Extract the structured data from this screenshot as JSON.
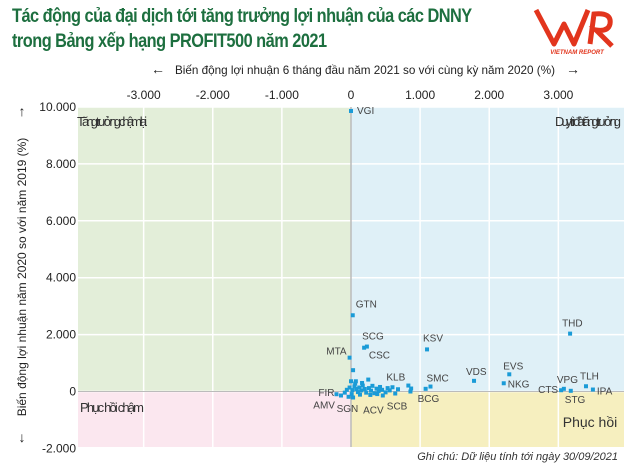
{
  "title_line1": "Tác động của đại dịch tới tăng trưởng lợi nhuận của các DNNY",
  "title_line2": "trong Bảng xếp hạng PROFIT500 năm 2021",
  "logo": {
    "text": "VNR",
    "subtitle": "VIETNAM REPORT",
    "color": "#e2351d"
  },
  "footnote": "Ghi chú: Dữ liệu tính tới ngày 30/09/2021",
  "colors": {
    "point": "#1a9bd7",
    "q_top_left": "#e3eed9",
    "q_top_right": "#dff0f7",
    "q_bottom_left": "#fbe7ef",
    "q_bottom_right": "#f6efbf",
    "title": "#1d6f3f"
  },
  "chart_data": {
    "type": "scatter",
    "xlabel": "Biến động lợi nhuận 6 tháng đầu năm 2021 so với cùng kỳ năm 2020 (%)",
    "ylabel": "Biến động lợi nhuận năm 2020 so với năm 2019 (%)",
    "xlim": [
      -3950,
      3950
    ],
    "ylim": [
      -1950,
      10000
    ],
    "x_ticks": [
      -3000,
      -2000,
      -1000,
      0,
      1000,
      2000,
      3000
    ],
    "x_tick_labels": [
      "-3.000",
      "-2.000",
      "-1.000",
      "0",
      "1.000",
      "2.000",
      "3.000"
    ],
    "y_ticks": [
      10000,
      8000,
      6000,
      4000,
      2000,
      0,
      -2000
    ],
    "y_tick_labels": [
      "10.000",
      "8.000",
      "6.000",
      "4.000",
      "2.000",
      "0",
      "-2.000"
    ],
    "grid": true,
    "quadrants": {
      "top_left": "Tăng trưởng chậm lại",
      "top_right": "Duy trì đà tăng trưởng",
      "bottom_left": "Phục hồi chậm",
      "bottom_right": "Phục hồi"
    },
    "points": [
      {
        "label": "VGI",
        "x": 0,
        "y": 9860
      },
      {
        "label": "GTN",
        "x": 25,
        "y": 2680
      },
      {
        "label": "SCG",
        "x": 190,
        "y": 1540
      },
      {
        "label": "CSC",
        "x": 230,
        "y": 1580
      },
      {
        "label": "MTA",
        "x": -20,
        "y": 1190
      },
      {
        "label": "KSV",
        "x": 1100,
        "y": 1480
      },
      {
        "label": "SMC",
        "x": 1150,
        "y": 175
      },
      {
        "label": "BCG",
        "x": 1080,
        "y": 95
      },
      {
        "label": "KLB",
        "x": 830,
        "y": 210
      },
      {
        "label": "FIR",
        "x": -210,
        "y": -95
      },
      {
        "label": "AMV",
        "x": -145,
        "y": -140
      },
      {
        "label": "SGN",
        "x": -35,
        "y": -185
      },
      {
        "label": "ACV",
        "x": 30,
        "y": -210
      },
      {
        "label": "SCB",
        "x": 460,
        "y": -140
      },
      {
        "label": "THD",
        "x": 3170,
        "y": 2035
      },
      {
        "label": "VDS",
        "x": 1780,
        "y": 375
      },
      {
        "label": "EVS",
        "x": 2290,
        "y": 605
      },
      {
        "label": "NKG",
        "x": 2210,
        "y": 290
      },
      {
        "label": "VPG",
        "x": 3080,
        "y": 95
      },
      {
        "label": "CTS",
        "x": 3040,
        "y": 45
      },
      {
        "label": "STG",
        "x": 3180,
        "y": 25
      },
      {
        "label": "TLH",
        "x": 3400,
        "y": 185
      },
      {
        "label": "IPA",
        "x": 3500,
        "y": 70
      },
      {
        "label": "",
        "x": 870,
        "y": 105
      },
      {
        "label": "",
        "x": 860,
        "y": 0
      },
      {
        "label": "",
        "x": 30,
        "y": 750
      },
      {
        "label": "",
        "x": 0,
        "y": 360
      },
      {
        "label": "",
        "x": 70,
        "y": 360
      },
      {
        "label": "",
        "x": 250,
        "y": 420
      },
      {
        "label": "",
        "x": -60,
        "y": 60
      },
      {
        "label": "",
        "x": -20,
        "y": 140
      },
      {
        "label": "",
        "x": 20,
        "y": 50
      },
      {
        "label": "",
        "x": 50,
        "y": 180
      },
      {
        "label": "",
        "x": 80,
        "y": 90
      },
      {
        "label": "",
        "x": 100,
        "y": -20
      },
      {
        "label": "",
        "x": 120,
        "y": 140
      },
      {
        "label": "",
        "x": 150,
        "y": 40
      },
      {
        "label": "",
        "x": 170,
        "y": 210
      },
      {
        "label": "",
        "x": 200,
        "y": 90
      },
      {
        "label": "",
        "x": 220,
        "y": -40
      },
      {
        "label": "",
        "x": 260,
        "y": 120
      },
      {
        "label": "",
        "x": 290,
        "y": 30
      },
      {
        "label": "",
        "x": 310,
        "y": 200
      },
      {
        "label": "",
        "x": 340,
        "y": -60
      },
      {
        "label": "",
        "x": 370,
        "y": 100
      },
      {
        "label": "",
        "x": 400,
        "y": 20
      },
      {
        "label": "",
        "x": 420,
        "y": 160
      },
      {
        "label": "",
        "x": 450,
        "y": 60
      },
      {
        "label": "",
        "x": 500,
        "y": -30
      },
      {
        "label": "",
        "x": 530,
        "y": 120
      },
      {
        "label": "",
        "x": 560,
        "y": 40
      },
      {
        "label": "",
        "x": 600,
        "y": 150
      },
      {
        "label": "",
        "x": 640,
        "y": -70
      },
      {
        "label": "",
        "x": 680,
        "y": 80
      },
      {
        "label": "",
        "x": -90,
        "y": -40
      },
      {
        "label": "",
        "x": 10,
        "y": -90
      },
      {
        "label": "",
        "x": 130,
        "y": -110
      },
      {
        "label": "",
        "x": 280,
        "y": -120
      },
      {
        "label": "",
        "x": 380,
        "y": -90
      },
      {
        "label": "",
        "x": 60,
        "y": 280
      },
      {
        "label": "",
        "x": 160,
        "y": 300
      }
    ]
  }
}
